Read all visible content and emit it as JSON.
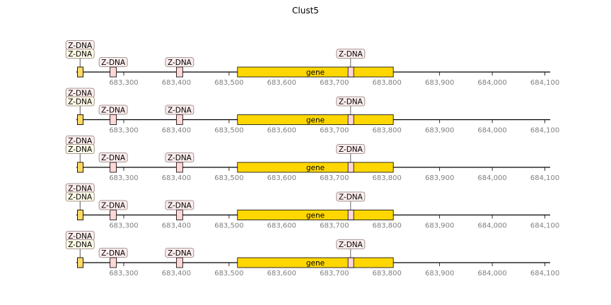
{
  "chart_data": {
    "type": "genomic-track",
    "title": "Clust5",
    "xlim": [
      683210,
      684110
    ],
    "x_ticks": [
      683300,
      683400,
      683500,
      683600,
      683700,
      683800,
      683900,
      684000,
      684100
    ],
    "x_tick_labels": [
      "683,300",
      "683,400",
      "683,500",
      "683,600",
      "683,700",
      "683,800",
      "683,900",
      "684,000",
      "684,100"
    ],
    "tracks": [
      {
        "features": [
          {
            "label": "Z-DNA",
            "start": 683212,
            "end": 683222,
            "color": "#FFD7D7",
            "label_level": 2
          },
          {
            "label": "Z-DNA",
            "start": 683212,
            "end": 683222,
            "color": "#FFD966",
            "label_level": 1
          },
          {
            "label": "Z-DNA",
            "start": 683274,
            "end": 683286,
            "color": "#FFD7D7",
            "label_level": 0
          },
          {
            "label": "Z-DNA",
            "start": 683400,
            "end": 683412,
            "color": "#FFD7D7",
            "label_level": 0
          },
          {
            "label": "gene",
            "start": 683516,
            "end": 683812,
            "color": "#FFD700",
            "kind": "gene"
          },
          {
            "label": "Z-DNA",
            "start": 683726,
            "end": 683736,
            "color": "#FFD7D7",
            "label_level": 1
          }
        ]
      },
      {
        "features": [
          {
            "label": "Z-DNA",
            "start": 683212,
            "end": 683222,
            "color": "#FFD7D7",
            "label_level": 2
          },
          {
            "label": "Z-DNA",
            "start": 683212,
            "end": 683222,
            "color": "#FFD966",
            "label_level": 1
          },
          {
            "label": "Z-DNA",
            "start": 683274,
            "end": 683286,
            "color": "#FFD7D7",
            "label_level": 0
          },
          {
            "label": "Z-DNA",
            "start": 683400,
            "end": 683412,
            "color": "#FFD7D7",
            "label_level": 0
          },
          {
            "label": "gene",
            "start": 683516,
            "end": 683812,
            "color": "#FFD700",
            "kind": "gene"
          },
          {
            "label": "Z-DNA",
            "start": 683726,
            "end": 683736,
            "color": "#FFD7D7",
            "label_level": 1
          }
        ]
      },
      {
        "features": [
          {
            "label": "Z-DNA",
            "start": 683212,
            "end": 683222,
            "color": "#FFD7D7",
            "label_level": 2
          },
          {
            "label": "Z-DNA",
            "start": 683212,
            "end": 683222,
            "color": "#FFD966",
            "label_level": 1
          },
          {
            "label": "Z-DNA",
            "start": 683274,
            "end": 683286,
            "color": "#FFD7D7",
            "label_level": 0
          },
          {
            "label": "Z-DNA",
            "start": 683400,
            "end": 683412,
            "color": "#FFD7D7",
            "label_level": 0
          },
          {
            "label": "gene",
            "start": 683516,
            "end": 683812,
            "color": "#FFD700",
            "kind": "gene"
          },
          {
            "label": "Z-DNA",
            "start": 683726,
            "end": 683736,
            "color": "#FFD7D7",
            "label_level": 1
          }
        ]
      },
      {
        "features": [
          {
            "label": "Z-DNA",
            "start": 683212,
            "end": 683222,
            "color": "#FFD7D7",
            "label_level": 2
          },
          {
            "label": "Z-DNA",
            "start": 683212,
            "end": 683222,
            "color": "#FFD966",
            "label_level": 1
          },
          {
            "label": "Z-DNA",
            "start": 683274,
            "end": 683286,
            "color": "#FFD7D7",
            "label_level": 0
          },
          {
            "label": "Z-DNA",
            "start": 683400,
            "end": 683412,
            "color": "#FFD7D7",
            "label_level": 0
          },
          {
            "label": "gene",
            "start": 683516,
            "end": 683812,
            "color": "#FFD700",
            "kind": "gene"
          },
          {
            "label": "Z-DNA",
            "start": 683726,
            "end": 683736,
            "color": "#FFD7D7",
            "label_level": 1
          }
        ]
      },
      {
        "features": [
          {
            "label": "Z-DNA",
            "start": 683212,
            "end": 683222,
            "color": "#FFD7D7",
            "label_level": 2
          },
          {
            "label": "Z-DNA",
            "start": 683212,
            "end": 683222,
            "color": "#FFD966",
            "label_level": 1
          },
          {
            "label": "Z-DNA",
            "start": 683274,
            "end": 683286,
            "color": "#FFD7D7",
            "label_level": 0
          },
          {
            "label": "Z-DNA",
            "start": 683400,
            "end": 683412,
            "color": "#FFD7D7",
            "label_level": 0
          },
          {
            "label": "gene",
            "start": 683516,
            "end": 683812,
            "color": "#FFD700",
            "kind": "gene"
          },
          {
            "label": "Z-DNA",
            "start": 683726,
            "end": 683736,
            "color": "#FFD7D7",
            "label_level": 1
          }
        ]
      }
    ]
  }
}
